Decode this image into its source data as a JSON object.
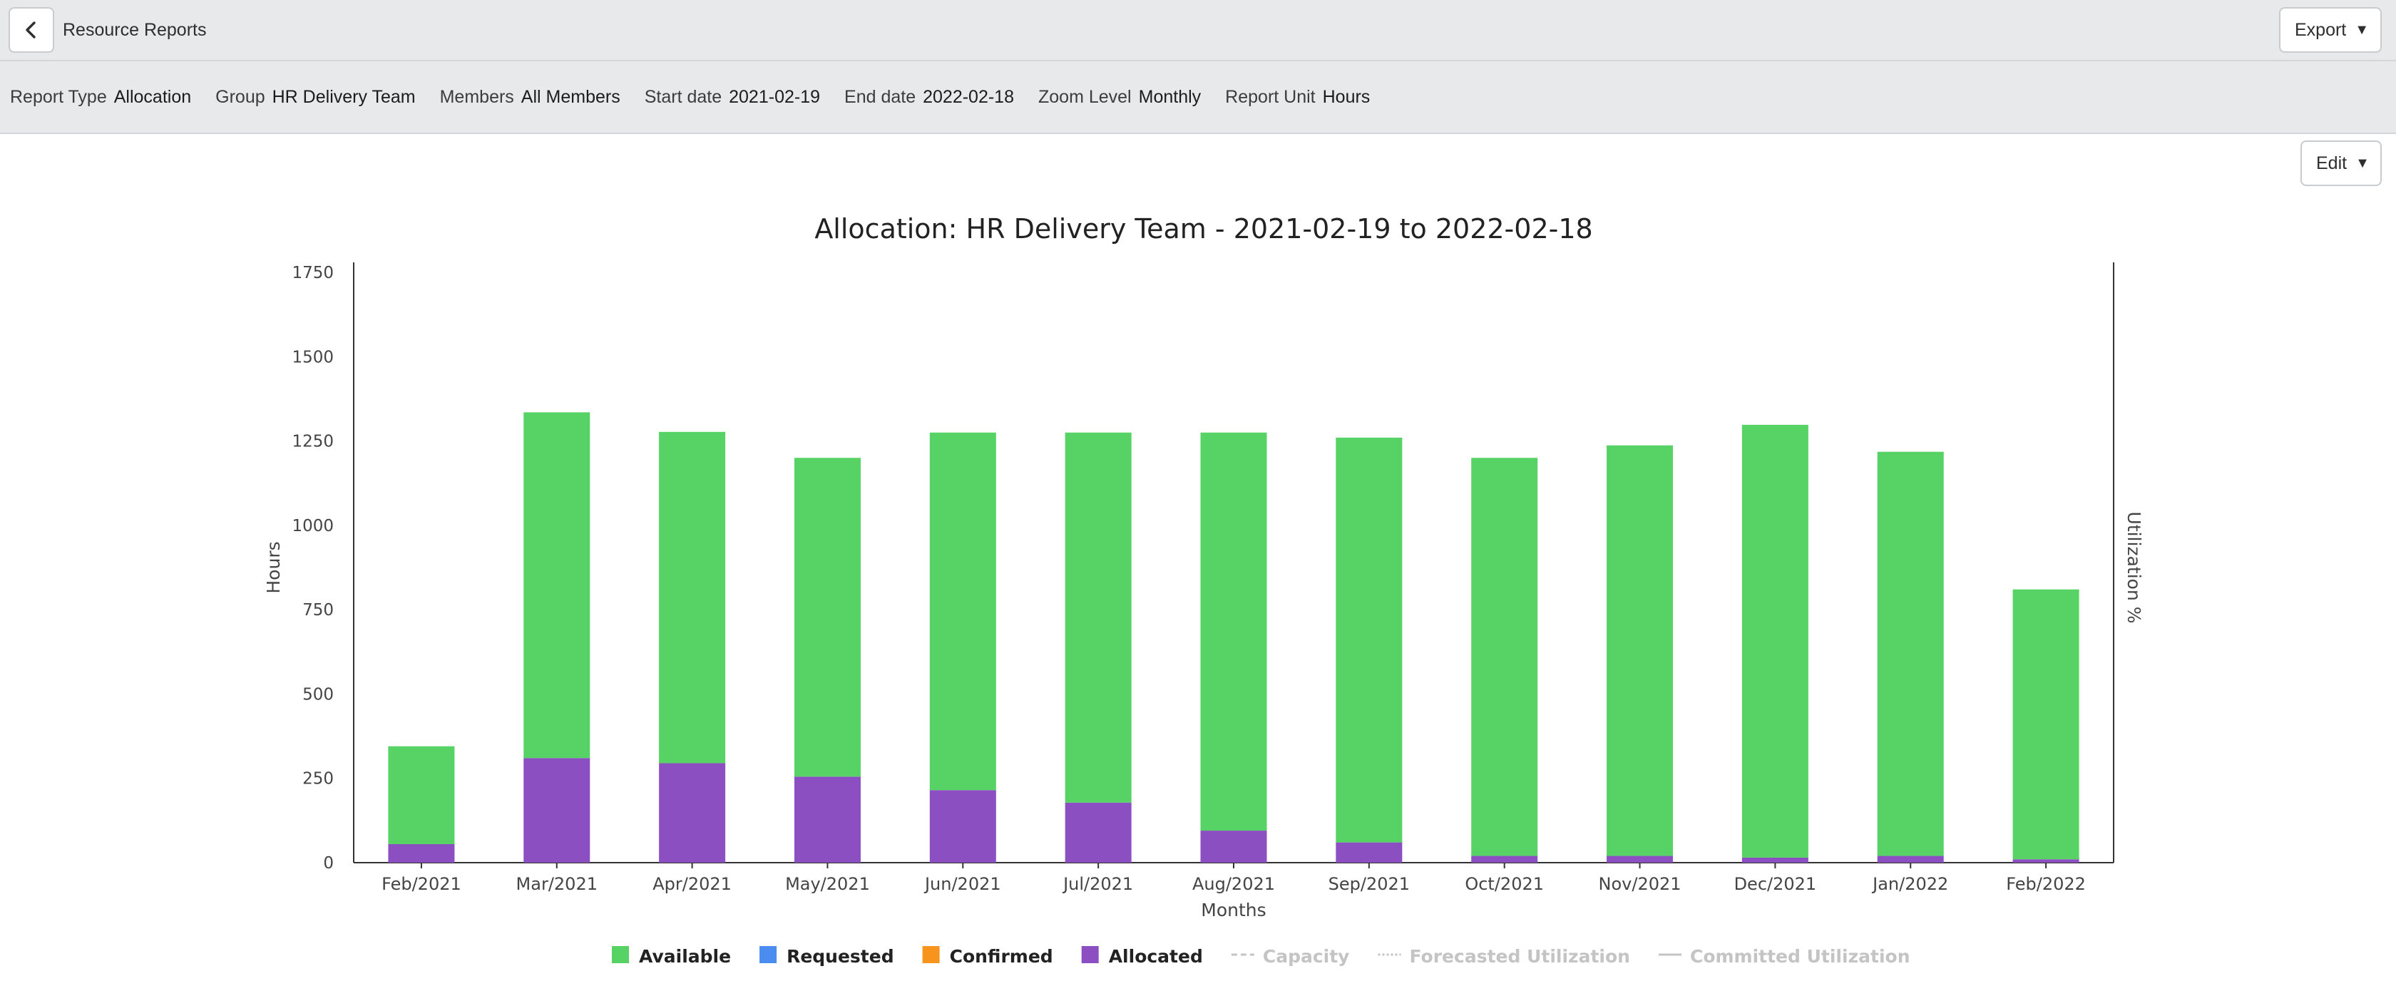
{
  "header": {
    "title": "Resource Reports",
    "export_label": "Export",
    "edit_label": "Edit"
  },
  "filters": [
    {
      "label": "Report Type",
      "value": "Allocation"
    },
    {
      "label": "Group",
      "value": "HR Delivery Team"
    },
    {
      "label": "Members",
      "value": "All Members"
    },
    {
      "label": "Start date",
      "value": "2021-02-19"
    },
    {
      "label": "End date",
      "value": "2022-02-18"
    },
    {
      "label": "Zoom Level",
      "value": "Monthly"
    },
    {
      "label": "Report Unit",
      "value": "Hours"
    }
  ],
  "colors": {
    "available": "#56d364",
    "requested": "#4a8cf0",
    "confirmed": "#f7941d",
    "allocated": "#8c4fc2",
    "disabled_legend": "#c4c4c4"
  },
  "chart_data": {
    "type": "bar",
    "stacked": true,
    "title": "Allocation: HR Delivery Team - 2021-02-19 to 2022-02-18",
    "xlabel": "Months",
    "ylabel": "Hours",
    "y2label": "Utilization %",
    "ylim": [
      0,
      1750
    ],
    "yticks": [
      0,
      250,
      500,
      750,
      1000,
      1250,
      1500,
      1750
    ],
    "grid": false,
    "legend_position": "bottom",
    "categories": [
      "Feb/2021",
      "Mar/2021",
      "Apr/2021",
      "May/2021",
      "Jun/2021",
      "Jul/2021",
      "Aug/2021",
      "Sep/2021",
      "Oct/2021",
      "Nov/2021",
      "Dec/2021",
      "Jan/2022",
      "Feb/2022"
    ],
    "series": [
      {
        "name": "Allocated",
        "values": [
          55,
          310,
          295,
          255,
          215,
          178,
          95,
          60,
          20,
          20,
          15,
          20,
          10
        ]
      },
      {
        "name": "Available",
        "values": [
          290,
          1025,
          982,
          945,
          1060,
          1097,
          1180,
          1200,
          1180,
          1217,
          1283,
          1198,
          800
        ]
      }
    ],
    "legend": [
      {
        "name": "Available",
        "key": "available",
        "style": "square",
        "enabled": true
      },
      {
        "name": "Requested",
        "key": "requested",
        "style": "square",
        "enabled": true
      },
      {
        "name": "Confirmed",
        "key": "confirmed",
        "style": "square",
        "enabled": true
      },
      {
        "name": "Allocated",
        "key": "allocated",
        "style": "square",
        "enabled": true
      },
      {
        "name": "Capacity",
        "style": "dashed",
        "enabled": false
      },
      {
        "name": "Forecasted Utilization",
        "style": "dotted",
        "enabled": false
      },
      {
        "name": "Committed Utilization",
        "style": "solid",
        "enabled": false
      }
    ]
  }
}
